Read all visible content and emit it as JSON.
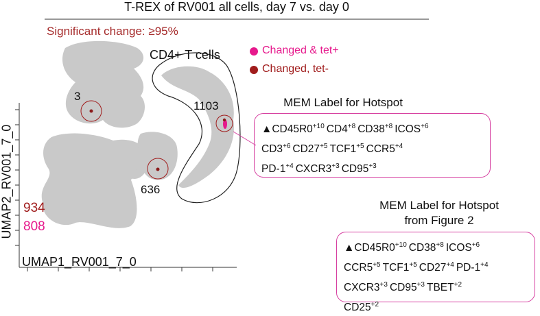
{
  "title": "T-REX of RV001 all cells, day 7 vs. day 0",
  "significance": {
    "text": "Significant change: ≥95%",
    "color": "#a52a2a"
  },
  "legend": [
    {
      "label": "Changed & tet+",
      "color": "#e6198c"
    },
    {
      "label": "Changed, tet-",
      "color": "#a01c1c"
    }
  ],
  "plot": {
    "x_label": "UMAP1_RV001_7_0",
    "y_label": "UMAP2_RV001_7_0",
    "gate_label": "CD4+ T cells",
    "hotspots": [
      3,
      1103,
      636
    ],
    "counts": [
      {
        "value": 934,
        "color": "#a01c1c"
      },
      {
        "value": 808,
        "color": "#e6198c"
      }
    ]
  },
  "mem_label": {
    "title_lines": [
      "MEM Label for Hotspot"
    ],
    "prefix": "▲",
    "lines": [
      [
        {
          "name": "CD45R0",
          "score": "+10"
        },
        {
          "name": "CD4",
          "score": "+8"
        },
        {
          "name": "CD38",
          "score": "+8"
        },
        {
          "name": "ICOS",
          "score": "+6"
        }
      ],
      [
        {
          "name": "CD3",
          "score": "+6"
        },
        {
          "name": "CD27",
          "score": "+5"
        },
        {
          "name": "TCF1",
          "score": "+5"
        },
        {
          "name": "CCR5",
          "score": "+4"
        }
      ],
      [
        {
          "name": "PD-1",
          "score": "+4"
        },
        {
          "name": "CXCR3",
          "score": "+3"
        },
        {
          "name": "CD95",
          "score": "+3"
        }
      ]
    ]
  },
  "mem_label_fig2": {
    "title_lines": [
      "MEM Label for Hotspot",
      "from Figure 2"
    ],
    "prefix": "▲",
    "lines": [
      [
        {
          "name": "CD45R0",
          "score": "+10"
        },
        {
          "name": "CD38",
          "score": "+8"
        },
        {
          "name": "ICOS",
          "score": "+6"
        }
      ],
      [
        {
          "name": "CCR5",
          "score": "+5"
        },
        {
          "name": "TCF1",
          "score": "+5"
        },
        {
          "name": "CD27",
          "score": "+4"
        },
        {
          "name": "PD-1",
          "score": "+4"
        }
      ],
      [
        {
          "name": "CXCR3",
          "score": "+3"
        },
        {
          "name": "CD95",
          "score": "+3"
        },
        {
          "name": "TBET",
          "score": "+2"
        }
      ],
      [
        {
          "name": "CD25",
          "score": "+2"
        }
      ]
    ]
  }
}
